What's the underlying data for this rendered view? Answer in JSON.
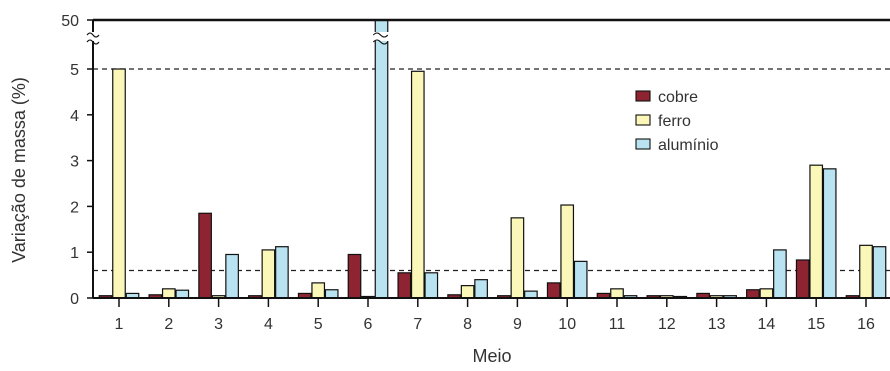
{
  "chart_data": {
    "type": "bar",
    "title": "",
    "xlabel": "Meio",
    "ylabel": "Variação de massa (%)",
    "categories": [
      "1",
      "2",
      "3",
      "4",
      "5",
      "6",
      "7",
      "8",
      "9",
      "10",
      "11",
      "12",
      "13",
      "14",
      "15",
      "16"
    ],
    "series": [
      {
        "name": "cobre",
        "color": "#8e2431",
        "values": [
          0.05,
          0.07,
          1.85,
          0.05,
          0.1,
          0.95,
          0.55,
          0.07,
          0.05,
          0.33,
          0.1,
          0.05,
          0.1,
          0.18,
          0.83,
          0.05
        ]
      },
      {
        "name": "ferro",
        "color": "#fbf7b9",
        "values": [
          5.0,
          0.2,
          0.05,
          1.05,
          0.33,
          0.0,
          4.95,
          0.27,
          1.75,
          2.03,
          0.2,
          0.05,
          0.05,
          0.2,
          2.9,
          1.15
        ]
      },
      {
        "name": "alumínio",
        "color": "#b9e3f0",
        "values": [
          0.1,
          0.17,
          0.95,
          1.12,
          0.18,
          50,
          0.55,
          0.4,
          0.15,
          0.8,
          0.05,
          0.0,
          0.05,
          1.05,
          2.82,
          1.12
        ]
      }
    ],
    "y_ticks": [
      "0",
      "1",
      "2",
      "3",
      "4",
      "5",
      "50"
    ],
    "y_break": {
      "lower_max": 5.5,
      "upper_value": 50
    },
    "reference_lines": [
      0.6,
      5.0
    ],
    "legend_position": "top-right",
    "grid": false
  }
}
